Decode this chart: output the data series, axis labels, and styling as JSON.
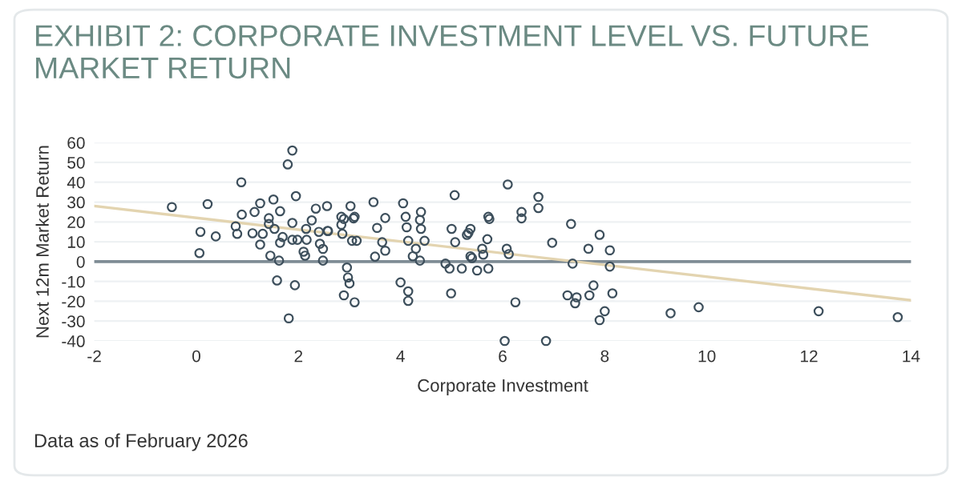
{
  "chart_data": {
    "type": "scatter",
    "title": "EXHIBIT 2: CORPORATE INVESTMENT LEVEL VS. FUTURE MARKET RETURN",
    "xlabel": "Corporate Investment",
    "ylabel": "Next 12m Market Return",
    "annotations": [
      "Data as of February 2026"
    ],
    "xlim": [
      -2,
      14
    ],
    "xticks": [
      -2,
      0,
      2,
      4,
      6,
      8,
      10,
      12,
      14
    ],
    "ylim": [
      -40,
      60
    ],
    "yticks": [
      -40,
      -30,
      -20,
      -10,
      0,
      10,
      20,
      30,
      40,
      50,
      60
    ],
    "grid": "y",
    "ref_lines": [
      {
        "axis": "y",
        "value": 0,
        "color": "#7f8c95"
      }
    ],
    "series": [
      {
        "color": "#3d4f5c",
        "marker": "circle",
        "x": [
          -0.48,
          0.06,
          0.08,
          0.22,
          0.38,
          0.77,
          0.8,
          0.88,
          0.89,
          1.1,
          1.14,
          1.25,
          1.25,
          1.3,
          1.42,
          1.42,
          1.45,
          1.51,
          1.53,
          1.58,
          1.64,
          1.64,
          1.62,
          1.69,
          1.79,
          1.88,
          1.81,
          1.88,
          1.88,
          1.93,
          1.95,
          1.98,
          2.1,
          2.13,
          2.15,
          2.16,
          2.26,
          2.34,
          2.4,
          2.42,
          2.48,
          2.48,
          2.56,
          2.57,
          2.58,
          2.84,
          2.84,
          2.86,
          2.89,
          3.02,
          3.05,
          3.08,
          3.1,
          3.14,
          2.95,
          2.97,
          3.0,
          2.89,
          3.1,
          3.47,
          3.5,
          3.54,
          3.64,
          3.7,
          3.7,
          4.05,
          4.1,
          4.12,
          4.15,
          4.24,
          4.0,
          4.15,
          4.15,
          4.3,
          4.38,
          4.4,
          4.38,
          4.4,
          4.47,
          4.88,
          4.96,
          4.99,
          5.0,
          5.06,
          5.07,
          5.2,
          5.3,
          5.33,
          5.37,
          5.37,
          5.4,
          5.5,
          5.6,
          5.62,
          5.7,
          5.72,
          5.74,
          5.72,
          6.1,
          6.04,
          6.08,
          6.12,
          6.25,
          6.37,
          6.37,
          6.7,
          6.7,
          6.85,
          6.97,
          7.27,
          7.34,
          7.37,
          7.42,
          7.45,
          7.68,
          7.7,
          7.78,
          7.9,
          8.0,
          7.9,
          8.1,
          8.1,
          8.15,
          9.29,
          9.84,
          12.19,
          13.74
        ],
        "values": [
          27.5,
          4.3,
          15,
          29,
          12.7,
          17.8,
          14,
          40,
          23.7,
          14.3,
          25,
          29.4,
          8.6,
          14,
          21.9,
          19,
          3,
          31.3,
          16.5,
          -9.5,
          25.4,
          9.5,
          0.5,
          12.4,
          49,
          56,
          -28.6,
          19.5,
          11,
          -11.9,
          33,
          11,
          5,
          3,
          16.5,
          11,
          20.8,
          26.7,
          15,
          9,
          6.4,
          0.5,
          28,
          15.5,
          15.4,
          22.6,
          18.6,
          14,
          21.5,
          28,
          10.5,
          21.8,
          22.6,
          10.5,
          -3,
          -8,
          -11,
          -17,
          -20.5,
          30,
          2.5,
          17,
          9.8,
          5.5,
          22,
          29.4,
          22.6,
          17.3,
          10.5,
          2.7,
          -10.5,
          -15,
          -19.8,
          6.5,
          21,
          25,
          0.5,
          16.5,
          10.5,
          -1,
          -3.5,
          -16,
          16.5,
          33.5,
          9.8,
          -3.5,
          13.5,
          14.5,
          16.5,
          2.7,
          1.8,
          -4.5,
          6.5,
          3.5,
          11.3,
          22.6,
          21.5,
          -3.5,
          38.9,
          -40,
          6.5,
          3.8,
          -20.5,
          25,
          21.8,
          32.6,
          27,
          -40,
          9.5,
          -17,
          19,
          -1,
          -21,
          -18,
          6.5,
          -17,
          -12,
          13.5,
          -25,
          -29.5,
          5.7,
          -2.5,
          -16,
          -26,
          -23,
          -25,
          -28
        ]
      },
      {
        "type": "line",
        "color": "#e3d4b0",
        "x": [
          -2,
          14
        ],
        "values": [
          28,
          -19.5
        ]
      }
    ]
  }
}
